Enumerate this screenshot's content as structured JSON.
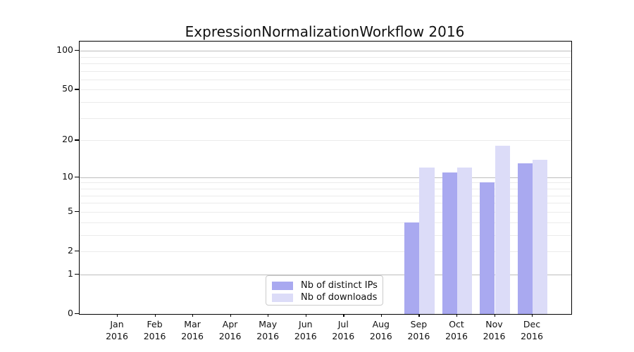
{
  "title": "ExpressionNormalizationWorkflow 2016",
  "chart_data": {
    "type": "bar",
    "title": "ExpressionNormalizationWorkflow 2016",
    "categories": [
      "Jan",
      "Feb",
      "Mar",
      "Apr",
      "May",
      "Jun",
      "Jul",
      "Aug",
      "Sep",
      "Oct",
      "Nov",
      "Dec"
    ],
    "x_year_label": "2016",
    "series": [
      {
        "name": "Nb of distinct IPs",
        "color": "#a9a9f0",
        "values": [
          0,
          0,
          0,
          0,
          0,
          0,
          0,
          0,
          4,
          11,
          9,
          13
        ]
      },
      {
        "name": "Nb of downloads",
        "color": "#dcdcf8",
        "values": [
          0,
          0,
          0,
          0,
          0,
          0,
          0,
          0,
          12,
          12,
          18,
          14
        ]
      }
    ],
    "xlabel": "",
    "ylabel": "",
    "y_scale": "log10(1+value)",
    "ylim": [
      0,
      117
    ],
    "y_ticks": [
      0,
      1,
      2,
      5,
      10,
      20,
      50,
      100
    ],
    "major_gridlines": [
      1,
      10,
      100
    ],
    "minor_gridlines": [
      2,
      3,
      4,
      5,
      6,
      7,
      8,
      9,
      20,
      30,
      40,
      50,
      60,
      70,
      80,
      90
    ],
    "grid": "on",
    "legend_position": "bottom-center-inside"
  }
}
